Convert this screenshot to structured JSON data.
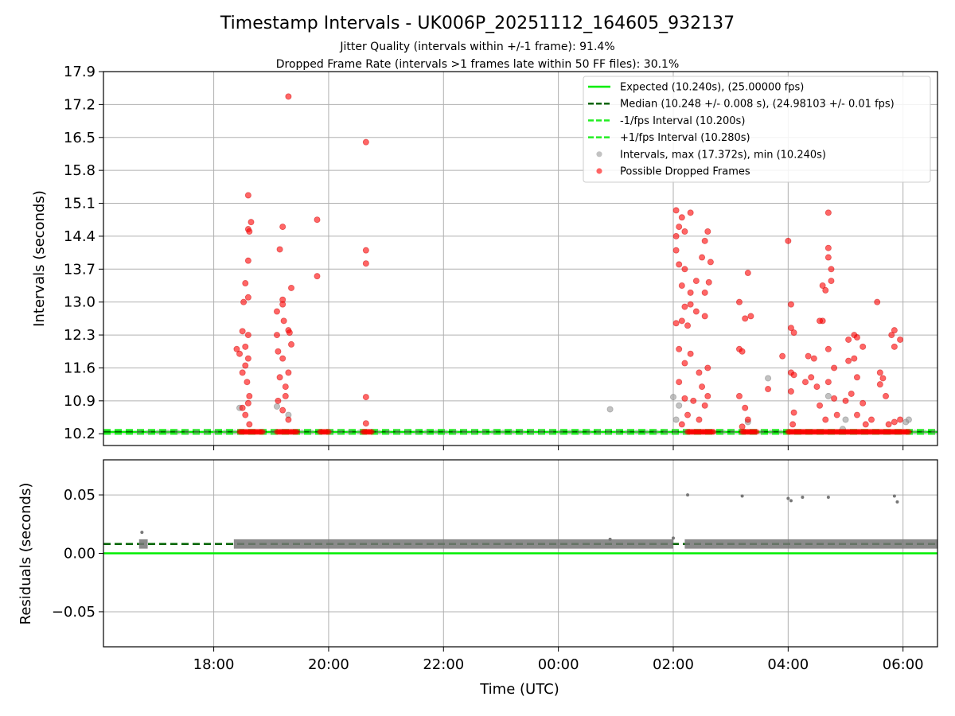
{
  "chart_data": {
    "type": "scatter",
    "title": "Timestamp Intervals - UK006P_20251112_164605_932137",
    "subtitles": [
      "Jitter Quality (intervals within +/-1 frame): 91.4%",
      "Dropped Frame Rate (intervals >1 frames late within 50 FF files): 30.1%"
    ],
    "panels": [
      {
        "id": "intervals",
        "ylabel": "Intervals (seconds)",
        "ylim": [
          9.95,
          17.9
        ],
        "yticks": [
          10.2,
          10.9,
          11.6,
          12.3,
          13.0,
          13.7,
          14.4,
          15.1,
          15.8,
          16.5,
          17.2,
          17.9
        ],
        "ytick_labels": [
          "10.2",
          "10.9",
          "11.6",
          "12.3",
          "13.0",
          "13.7",
          "14.4",
          "15.1",
          "15.8",
          "16.5",
          "17.2",
          "17.9"
        ],
        "grid": true,
        "legend_position": "top-right",
        "lines": [
          {
            "name": "Expected (10.240s), (25.00000 fps)",
            "value": 10.24,
            "color": "#00ee00",
            "style": "solid"
          },
          {
            "name": "Median (10.248 +/- 0.008 s), (24.98103 +/- 0.01 fps)",
            "value": 10.248,
            "color": "#006400",
            "style": "dashed"
          },
          {
            "name": "-1/fps Interval (10.200s)",
            "value": 10.2,
            "color": "#22ee22",
            "style": "dashed"
          },
          {
            "name": "+1/fps Interval (10.280s)",
            "value": 10.28,
            "color": "#22ee22",
            "style": "dashed"
          }
        ],
        "series": [
          {
            "name": "Intervals, max (17.372s), min (10.240s)",
            "color": "#999999",
            "marker": "circle",
            "points": [
              [
                18.45,
                10.75
              ],
              [
                19.1,
                10.78
              ],
              [
                19.3,
                10.6
              ],
              [
                0.9,
                10.72
              ],
              [
                2.0,
                10.98
              ],
              [
                2.05,
                10.5
              ],
              [
                2.1,
                10.8
              ],
              [
                3.3,
                10.45
              ],
              [
                3.65,
                11.38
              ],
              [
                4.7,
                11.0
              ],
              [
                4.95,
                10.3
              ],
              [
                5.0,
                10.5
              ],
              [
                6.05,
                10.45
              ],
              [
                6.1,
                10.5
              ]
            ]
          },
          {
            "name": "Possible Dropped Frames",
            "color": "#ff0000",
            "marker": "circle",
            "points": [
              [
                18.6,
                15.27
              ],
              [
                18.65,
                14.7
              ],
              [
                18.6,
                14.55
              ],
              [
                18.62,
                14.5
              ],
              [
                18.6,
                13.88
              ],
              [
                18.55,
                13.4
              ],
              [
                18.52,
                13.0
              ],
              [
                18.6,
                13.1
              ],
              [
                18.4,
                12.0
              ],
              [
                18.5,
                12.38
              ],
              [
                18.55,
                12.05
              ],
              [
                18.6,
                11.8
              ],
              [
                18.58,
                11.3
              ],
              [
                18.62,
                11.0
              ],
              [
                18.5,
                10.75
              ],
              [
                18.55,
                10.6
              ],
              [
                18.6,
                10.85
              ],
              [
                18.62,
                10.4
              ],
              [
                18.5,
                11.5
              ],
              [
                18.45,
                11.9
              ],
              [
                18.55,
                11.65
              ],
              [
                18.6,
                12.3
              ],
              [
                19.3,
                17.37
              ],
              [
                19.2,
                14.6
              ],
              [
                19.15,
                14.12
              ],
              [
                19.35,
                13.3
              ],
              [
                19.2,
                13.05
              ],
              [
                19.2,
                12.95
              ],
              [
                19.1,
                12.8
              ],
              [
                19.3,
                12.4
              ],
              [
                19.22,
                12.6
              ],
              [
                19.35,
                12.1
              ],
              [
                19.12,
                11.95
              ],
              [
                19.2,
                11.8
              ],
              [
                19.3,
                11.5
              ],
              [
                19.15,
                11.4
              ],
              [
                19.25,
                11.2
              ],
              [
                19.12,
                10.9
              ],
              [
                19.2,
                10.7
              ],
              [
                19.3,
                10.5
              ],
              [
                19.1,
                12.3
              ],
              [
                19.32,
                12.35
              ],
              [
                19.25,
                11.0
              ],
              [
                19.8,
                14.75
              ],
              [
                19.8,
                13.55
              ],
              [
                20.65,
                16.4
              ],
              [
                20.65,
                14.1
              ],
              [
                20.65,
                13.82
              ],
              [
                20.65,
                10.98
              ],
              [
                20.65,
                10.42
              ],
              [
                2.05,
                14.95
              ],
              [
                2.15,
                14.8
              ],
              [
                2.3,
                14.9
              ],
              [
                2.1,
                14.6
              ],
              [
                2.05,
                14.4
              ],
              [
                2.2,
                14.5
              ],
              [
                2.6,
                14.5
              ],
              [
                2.55,
                14.3
              ],
              [
                2.05,
                14.1
              ],
              [
                2.1,
                13.8
              ],
              [
                2.2,
                13.7
              ],
              [
                2.5,
                13.95
              ],
              [
                2.65,
                13.85
              ],
              [
                2.15,
                13.35
              ],
              [
                2.3,
                13.2
              ],
              [
                2.4,
                13.45
              ],
              [
                2.55,
                13.2
              ],
              [
                2.62,
                13.42
              ],
              [
                2.2,
                12.9
              ],
              [
                2.3,
                12.95
              ],
              [
                2.15,
                12.6
              ],
              [
                2.25,
                12.5
              ],
              [
                2.05,
                12.55
              ],
              [
                2.4,
                12.8
              ],
              [
                2.55,
                12.7
              ],
              [
                2.1,
                12.0
              ],
              [
                2.3,
                11.9
              ],
              [
                2.2,
                11.7
              ],
              [
                2.45,
                11.5
              ],
              [
                2.6,
                11.6
              ],
              [
                2.1,
                11.3
              ],
              [
                2.5,
                11.2
              ],
              [
                2.2,
                10.95
              ],
              [
                2.35,
                10.9
              ],
              [
                2.55,
                10.8
              ],
              [
                2.6,
                11.0
              ],
              [
                2.25,
                10.6
              ],
              [
                2.45,
                10.5
              ],
              [
                2.15,
                10.4
              ],
              [
                3.15,
                13.0
              ],
              [
                3.3,
                13.62
              ],
              [
                3.25,
                12.65
              ],
              [
                3.35,
                12.7
              ],
              [
                3.15,
                12.0
              ],
              [
                3.2,
                11.95
              ],
              [
                3.15,
                11.0
              ],
              [
                3.25,
                10.75
              ],
              [
                3.3,
                10.5
              ],
              [
                3.2,
                10.35
              ],
              [
                3.65,
                11.15
              ],
              [
                3.9,
                11.85
              ],
              [
                4.0,
                14.3
              ],
              [
                4.05,
                12.95
              ],
              [
                4.05,
                12.45
              ],
              [
                4.1,
                12.35
              ],
              [
                4.05,
                11.5
              ],
              [
                4.1,
                11.45
              ],
              [
                4.05,
                11.1
              ],
              [
                4.1,
                10.65
              ],
              [
                4.08,
                10.4
              ],
              [
                4.3,
                11.3
              ],
              [
                4.35,
                11.85
              ],
              [
                4.45,
                11.8
              ],
              [
                4.4,
                11.4
              ],
              [
                4.6,
                12.6
              ],
              [
                4.55,
                12.6
              ],
              [
                4.5,
                11.2
              ],
              [
                4.55,
                10.8
              ],
              [
                4.65,
                10.5
              ],
              [
                4.7,
                14.9
              ],
              [
                4.7,
                14.15
              ],
              [
                4.7,
                13.95
              ],
              [
                4.75,
                13.7
              ],
              [
                4.75,
                13.45
              ],
              [
                4.6,
                13.35
              ],
              [
                4.65,
                13.25
              ],
              [
                4.7,
                12.0
              ],
              [
                4.8,
                11.6
              ],
              [
                4.7,
                11.3
              ],
              [
                4.8,
                10.95
              ],
              [
                4.85,
                10.6
              ],
              [
                5.15,
                12.3
              ],
              [
                5.2,
                12.25
              ],
              [
                5.05,
                12.2
              ],
              [
                5.3,
                12.05
              ],
              [
                5.05,
                11.75
              ],
              [
                5.15,
                11.8
              ],
              [
                5.2,
                11.4
              ],
              [
                5.1,
                11.05
              ],
              [
                5.0,
                10.9
              ],
              [
                5.2,
                10.6
              ],
              [
                5.3,
                10.85
              ],
              [
                5.35,
                10.4
              ],
              [
                5.55,
                13.0
              ],
              [
                5.65,
                11.38
              ],
              [
                5.6,
                11.25
              ],
              [
                5.6,
                11.5
              ],
              [
                5.45,
                10.5
              ],
              [
                5.7,
                11.0
              ],
              [
                5.85,
                12.4
              ],
              [
                5.8,
                12.3
              ],
              [
                5.85,
                12.05
              ],
              [
                5.95,
                12.2
              ],
              [
                5.85,
                10.45
              ],
              [
                5.75,
                10.4
              ],
              [
                5.95,
                10.5
              ]
            ]
          }
        ]
      },
      {
        "id": "residuals",
        "ylabel": "Residuals (seconds)",
        "ylim": [
          -0.08,
          0.08
        ],
        "yticks": [
          -0.05,
          0.0,
          0.05
        ],
        "ytick_labels": [
          "−0.05",
          "0.00",
          "0.05"
        ],
        "grid": true,
        "lines": [
          {
            "name": "zero",
            "value": 0.0,
            "color": "#00ee00",
            "style": "solid"
          },
          {
            "name": "median residual",
            "value": 0.008,
            "color": "#006400",
            "style": "dashed"
          }
        ],
        "series": [
          {
            "name": "Residuals",
            "color": "#777777",
            "marker": "dot",
            "outliers": [
              [
                16.75,
                0.018
              ],
              [
                2.25,
                0.05
              ],
              [
                3.2,
                0.049
              ],
              [
                4.0,
                0.047
              ],
              [
                4.05,
                0.045
              ],
              [
                4.25,
                0.048
              ],
              [
                4.7,
                0.048
              ],
              [
                5.85,
                0.049
              ],
              [
                5.9,
                0.044
              ],
              [
                0.9,
                0.012
              ],
              [
                2.0,
                0.013
              ]
            ],
            "band": {
              "y_min": 0.004,
              "y_max": 0.012,
              "segments": [
                [
                  16.7,
                  16.85
                ],
                [
                  18.35,
                  2.0
                ],
                [
                  2.2,
                  6.6
                ]
              ]
            }
          }
        ]
      }
    ],
    "x_axis": {
      "label": "Time (UTC)",
      "range_hours": [
        16.08,
        30.6
      ],
      "ticks": [
        18,
        20,
        22,
        24,
        26,
        28,
        30
      ],
      "tick_labels": [
        "18:00",
        "20:00",
        "22:00",
        "00:00",
        "02:00",
        "04:00",
        "06:00"
      ]
    }
  }
}
